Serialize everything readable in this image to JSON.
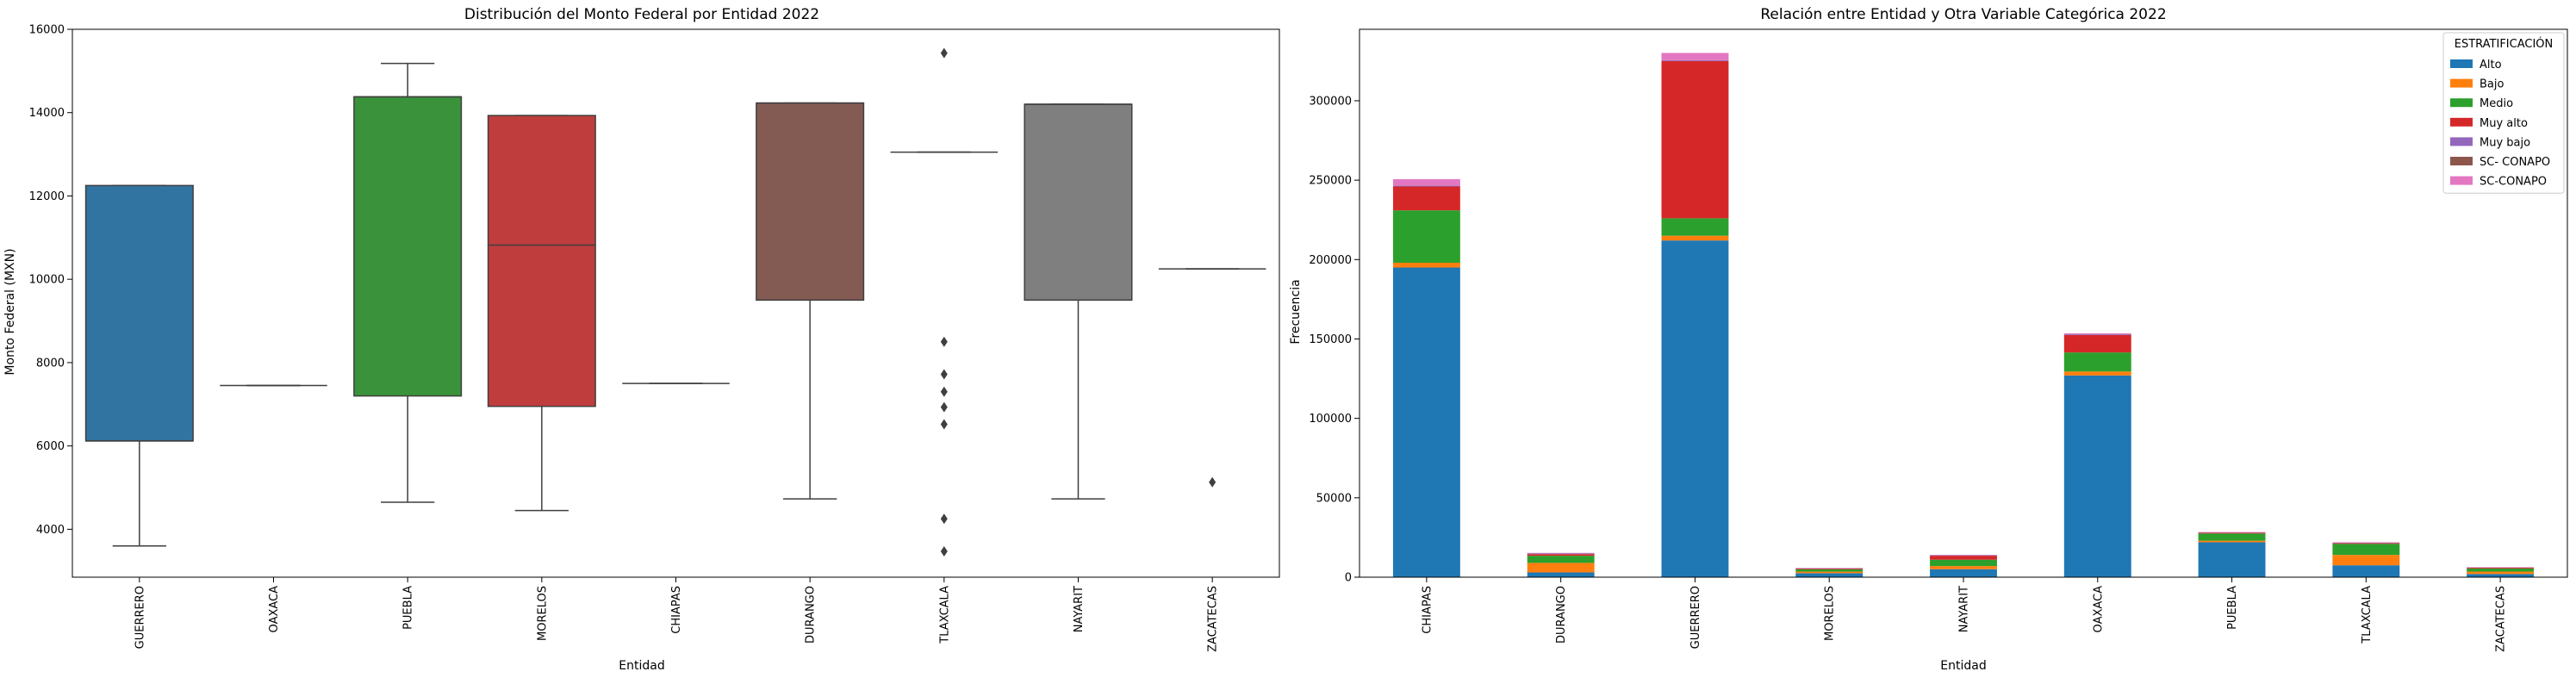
{
  "chart_data": [
    {
      "type": "box",
      "title": "Distribución del Monto Federal por Entidad 2022",
      "xlabel": "Entidad",
      "ylabel": "Monto Federal (MXN)",
      "ylim": [
        2850,
        16000
      ],
      "yticks": [
        4000,
        6000,
        8000,
        10000,
        12000,
        14000,
        16000
      ],
      "categories": [
        "GUERRERO",
        "OAXACA",
        "PUEBLA",
        "MORELOS",
        "CHIAPAS",
        "DURANGO",
        "TLAXCALA",
        "NAYARIT",
        "ZACATECAS"
      ],
      "colors": [
        "#3274a1",
        "#e1812c",
        "#3a923a",
        "#c03d3e",
        "#9372b2",
        "#845b53",
        "#d684bd",
        "#7f7f7f",
        "#a9aa35"
      ],
      "boxes": [
        {
          "whislo": 3600,
          "q1": 6120,
          "med": 6120,
          "q3": 12250,
          "whishi": 12250,
          "fliers": []
        },
        {
          "whislo": 7450,
          "q1": 7450,
          "med": 7450,
          "q3": 7450,
          "whishi": 7450,
          "fliers": []
        },
        {
          "whislo": 4650,
          "q1": 7200,
          "med": 14380,
          "q3": 14380,
          "whishi": 15180,
          "fliers": []
        },
        {
          "whislo": 4450,
          "q1": 6950,
          "med": 10820,
          "q3": 13930,
          "whishi": 13930,
          "fliers": []
        },
        {
          "whislo": 7500,
          "q1": 7500,
          "med": 7500,
          "q3": 7500,
          "whishi": 7500,
          "fliers": []
        },
        {
          "whislo": 4730,
          "q1": 9500,
          "med": 14230,
          "q3": 14230,
          "whishi": 14230,
          "fliers": []
        },
        {
          "whislo": 13050,
          "q1": 13050,
          "med": 13050,
          "q3": 13050,
          "whishi": 13050,
          "fliers": [
            15430,
            8500,
            7720,
            7300,
            6930,
            6520,
            4250,
            3470
          ]
        },
        {
          "whislo": 4730,
          "q1": 9500,
          "med": 14200,
          "q3": 14200,
          "whishi": 14200,
          "fliers": []
        },
        {
          "whislo": 10250,
          "q1": 10250,
          "med": 10250,
          "q3": 10250,
          "whishi": 10250,
          "fliers": [
            5130
          ]
        }
      ]
    },
    {
      "type": "bar",
      "stacked": true,
      "title": "Relación entre Entidad y Otra Variable Categórica 2022",
      "xlabel": "Entidad",
      "ylabel": "Frecuencia",
      "ylim": [
        0,
        345000
      ],
      "yticks": [
        0,
        50000,
        100000,
        150000,
        200000,
        250000,
        300000
      ],
      "categories": [
        "CHIAPAS",
        "DURANGO",
        "GUERRERO",
        "MORELOS",
        "NAYARIT",
        "OAXACA",
        "PUEBLA",
        "TLAXCALA",
        "ZACATECAS"
      ],
      "legend": {
        "title": "ESTRATIFICACIÓN",
        "position": "upper right"
      },
      "series": [
        {
          "name": "Alto",
          "color": "#1f77b4",
          "values": [
            195000,
            3000,
            212000,
            2500,
            5000,
            127000,
            22000,
            7500,
            2000
          ]
        },
        {
          "name": "Bajo",
          "color": "#ff7f0e",
          "values": [
            3000,
            6000,
            3000,
            1000,
            2000,
            2500,
            1000,
            6500,
            1500
          ]
        },
        {
          "name": "Medio",
          "color": "#2ca02c",
          "values": [
            33000,
            4500,
            11000,
            1500,
            4000,
            12000,
            4500,
            7000,
            2000
          ]
        },
        {
          "name": "Muy alto",
          "color": "#d62728",
          "values": [
            15000,
            1000,
            99000,
            500,
            2500,
            11000,
            500,
            500,
            500
          ]
        },
        {
          "name": "Muy bajo",
          "color": "#9467bd",
          "values": [
            500,
            500,
            500,
            200,
            300,
            500,
            200,
            300,
            200
          ]
        },
        {
          "name": "SC- CONAPO",
          "color": "#8c564b",
          "values": [
            100,
            100,
            100,
            0,
            100,
            100,
            0,
            0,
            0
          ]
        },
        {
          "name": "SC-CONAPO",
          "color": "#e377c2",
          "values": [
            4000,
            200,
            4500,
            100,
            200,
            500,
            200,
            200,
            100
          ]
        }
      ]
    }
  ]
}
